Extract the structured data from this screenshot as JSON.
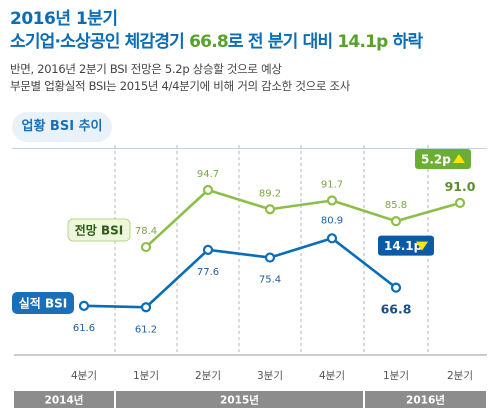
{
  "header": {
    "line1": "2016년 1분기",
    "line2_pre": "소기업·소상공인 체감경기 ",
    "line2_val1": "66.8",
    "line2_mid": "로 전 분기 대비 ",
    "line2_val2": "14.1p",
    "line2_post": " 하락",
    "desc1": "반면, 2016년 2분기 BSI 전망은 5.2p 상승할 것으로 예상",
    "desc2": "부문별 업황실적 BSI는 2015년 4/4분기에 비해 거의 감소한 것으로 조사"
  },
  "section_label": "업황 BSI 추이",
  "colors": {
    "title_blue": "#0a6db5",
    "accent_green": "#58a22b",
    "line_blue": "#0a6db5",
    "line_green": "#8cbf4a",
    "axis_gray": "#8c8c8c"
  },
  "chart_data": {
    "type": "line",
    "categories": [
      "4분기",
      "1분기",
      "2분기",
      "3분기",
      "4분기",
      "1분기",
      "2분기"
    ],
    "year_groups": [
      {
        "label": "2014년",
        "span": 1
      },
      {
        "label": "2015년",
        "span": 4
      },
      {
        "label": "2016년",
        "span": 2
      }
    ],
    "series": [
      {
        "name": "실적 BSI",
        "values": [
          61.6,
          61.2,
          77.6,
          75.4,
          80.9,
          66.8,
          null
        ]
      },
      {
        "name": "전망 BSI",
        "values": [
          null,
          78.4,
          94.7,
          89.2,
          91.7,
          85.8,
          91.0
        ]
      }
    ],
    "data_labels": {
      "실적 BSI": [
        "61.6",
        "61.2",
        "77.6",
        "75.4",
        "80.9",
        "66.8",
        ""
      ],
      "전망 BSI": [
        "",
        "78.4",
        "94.7",
        "89.2",
        "91.7",
        "85.8",
        "91.0"
      ]
    },
    "callouts": [
      {
        "series": "실적 BSI",
        "text": "14.1p",
        "direction": "down"
      },
      {
        "series": "전망 BSI",
        "text": "5.2p",
        "direction": "up"
      }
    ],
    "ylim": [
      55,
      100
    ]
  }
}
